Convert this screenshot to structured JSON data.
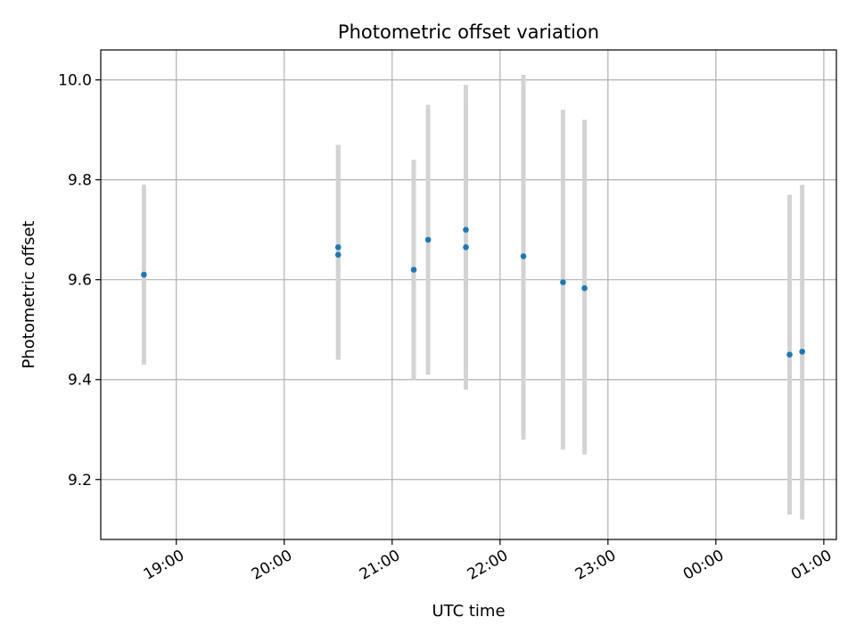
{
  "chart_data": {
    "type": "scatter",
    "title": "Photometric offset variation",
    "xlabel": "UTC time",
    "ylabel": "Photometric offset",
    "grid": true,
    "x_tick_labels": [
      "19:00",
      "20:00",
      "21:00",
      "22:00",
      "23:00",
      "00:00",
      "01:00"
    ],
    "y_tick_labels": [
      "9.2",
      "9.4",
      "9.6",
      "9.8",
      "10.0"
    ],
    "y_ticks": [
      9.2,
      9.4,
      9.6,
      9.8,
      10.0
    ],
    "ylim": [
      9.08,
      10.06
    ],
    "xlim": [
      "18:18",
      "01:07"
    ],
    "x_ticks": [
      "19:00",
      "20:00",
      "21:00",
      "22:00",
      "23:00",
      "00:00",
      "01:00"
    ],
    "points": [
      {
        "x": "18:42",
        "y": 9.61,
        "err_low": 9.43,
        "err_high": 9.79
      },
      {
        "x": "20:30",
        "y": 9.665,
        "err_low": 9.44,
        "err_high": 9.87
      },
      {
        "x": "20:30",
        "y": 9.65,
        "err_low": 9.44,
        "err_high": 9.87
      },
      {
        "x": "21:12",
        "y": 9.62,
        "err_low": 9.4,
        "err_high": 9.84
      },
      {
        "x": "21:20",
        "y": 9.68,
        "err_low": 9.41,
        "err_high": 9.95
      },
      {
        "x": "21:41",
        "y": 9.7,
        "err_low": 9.42,
        "err_high": 9.99
      },
      {
        "x": "21:41",
        "y": 9.665,
        "err_low": 9.38,
        "err_high": 9.95
      },
      {
        "x": "22:13",
        "y": 9.647,
        "err_low": 9.28,
        "err_high": 10.01
      },
      {
        "x": "22:35",
        "y": 9.595,
        "err_low": 9.26,
        "err_high": 9.94
      },
      {
        "x": "22:47",
        "y": 9.583,
        "err_low": 9.25,
        "err_high": 9.92
      },
      {
        "x": "00:41",
        "y": 9.45,
        "err_low": 9.13,
        "err_high": 9.77
      },
      {
        "x": "00:48",
        "y": 9.456,
        "err_low": 9.12,
        "err_high": 9.79
      }
    ],
    "colors": {
      "point": "#1f77b4",
      "errorbar": "#d3d3d3",
      "grid": "#b0b0b0",
      "axis": "#000000"
    }
  }
}
